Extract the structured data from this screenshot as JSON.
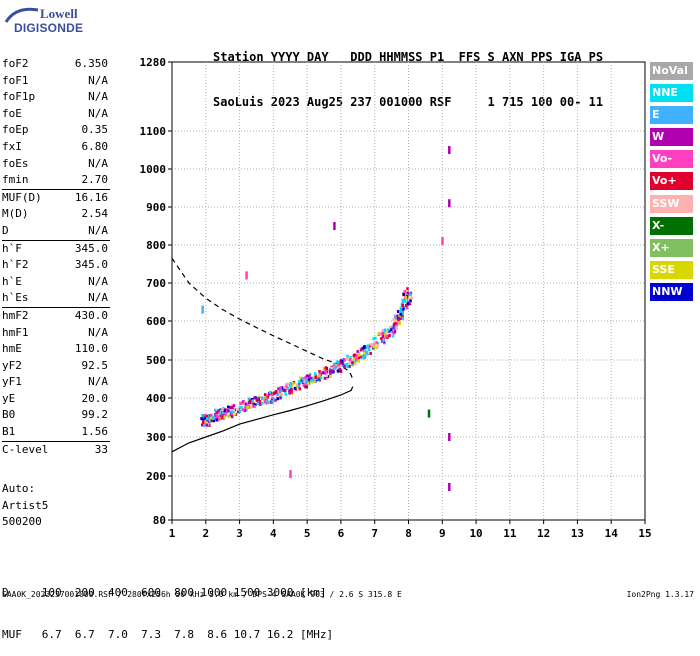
{
  "logo": {
    "line1": "Lowell",
    "line2": "DIGISONDE"
  },
  "header": {
    "line1": "Station YYYY DAY   DDD HHMMSS P1  FFS S AXN PPS IGA PS",
    "line2": "SaoLuis 2023 Aug25 237 001000 RSF     1 715 100 00- 11"
  },
  "params": [
    [
      [
        "foF2",
        "6.350"
      ],
      [
        "foF1",
        "N/A"
      ],
      [
        "foF1p",
        "N/A"
      ],
      [
        "foE",
        "N/A"
      ],
      [
        "foEp",
        "0.35"
      ],
      [
        "fxI",
        "6.80"
      ],
      [
        "foEs",
        "N/A"
      ],
      [
        "fmin",
        "2.70"
      ]
    ],
    [
      [
        "MUF(D)",
        "16.16"
      ],
      [
        "M(D)",
        "2.54"
      ],
      [
        "D",
        "N/A"
      ]
    ],
    [
      [
        "h`F",
        "345.0"
      ],
      [
        "h`F2",
        "345.0"
      ],
      [
        "h`E",
        "N/A"
      ],
      [
        "h`Es",
        "N/A"
      ]
    ],
    [
      [
        "hmF2",
        "430.0"
      ],
      [
        "hmF1",
        "N/A"
      ],
      [
        "hmE",
        "110.0"
      ],
      [
        "yF2",
        "92.5"
      ],
      [
        "yF1",
        "N/A"
      ],
      [
        "yE",
        "20.0"
      ],
      [
        "B0",
        "99.2"
      ],
      [
        "B1",
        "1.56"
      ]
    ],
    [
      [
        "C-level",
        "33"
      ]
    ]
  ],
  "auto": {
    "line1": "Auto:",
    "line2": "Artist5",
    "line3": "500200"
  },
  "legend": [
    {
      "label": "NoVal",
      "color": "#a8a8a8"
    },
    {
      "label": "NNE",
      "color": "#00e0f0"
    },
    {
      "label": "E",
      "color": "#40b0ff"
    },
    {
      "label": "W",
      "color": "#b000b0"
    },
    {
      "label": "Vo-",
      "color": "#ff40c0"
    },
    {
      "label": "Vo+",
      "color": "#e00030"
    },
    {
      "label": "SSW",
      "color": "#ffb0b0"
    },
    {
      "label": "X-",
      "color": "#007000"
    },
    {
      "label": "X+",
      "color": "#80c060"
    },
    {
      "label": "SSE",
      "color": "#d8d800"
    },
    {
      "label": "NNW",
      "color": "#0000d0"
    }
  ],
  "bottom": {
    "line1": "D     100  200  400  600  800 1000 1500 3000 [km]",
    "line2": "MUF   6.7  6.7  7.0  7.3  7.8  8.6 10.7 16.2 [MHz]"
  },
  "footer_left": "SAA0K_2023237001000.RSF / 280fx256h 50 kHz 5.0 km / DPS-4 SAA0K 903 / 2.6 S 315.8 E",
  "footer_right": "Ion2Png 1.3.17",
  "chart_data": {
    "type": "scatter",
    "xlim": [
      1,
      15
    ],
    "ylim": [
      80,
      1280
    ],
    "xticks": [
      1,
      2,
      3,
      4,
      5,
      6,
      7,
      8,
      9,
      10,
      11,
      12,
      13,
      14,
      15
    ],
    "yticks": [
      80,
      200,
      300,
      400,
      500,
      600,
      700,
      800,
      900,
      1000,
      1100,
      1280
    ],
    "grid": true,
    "y_scale": "nonlinear",
    "y_tick_pixels_note": "",
    "profile_solid": [
      [
        1.0,
        262
      ],
      [
        1.5,
        285
      ],
      [
        2.0,
        300
      ],
      [
        2.5,
        315
      ],
      [
        3.0,
        333
      ],
      [
        3.5,
        345
      ],
      [
        4.0,
        357
      ],
      [
        4.5,
        368
      ],
      [
        5.0,
        380
      ],
      [
        5.5,
        393
      ],
      [
        6.0,
        408
      ],
      [
        6.3,
        420
      ],
      [
        6.35,
        430
      ]
    ],
    "profile_dashed": [
      [
        1.0,
        765
      ],
      [
        1.5,
        700
      ],
      [
        2.0,
        660
      ],
      [
        2.5,
        630
      ],
      [
        3.0,
        605
      ],
      [
        3.5,
        583
      ],
      [
        4.0,
        562
      ],
      [
        4.5,
        542
      ],
      [
        5.0,
        522
      ],
      [
        5.5,
        502
      ],
      [
        5.9,
        490
      ],
      [
        6.25,
        470
      ],
      [
        6.35,
        450
      ]
    ],
    "trace": [
      [
        1.9,
        345
      ],
      [
        2.2,
        355
      ],
      [
        2.5,
        365
      ],
      [
        3.0,
        380
      ],
      [
        3.5,
        395
      ],
      [
        4.0,
        410
      ],
      [
        4.5,
        430
      ],
      [
        5.0,
        450
      ],
      [
        5.5,
        470
      ],
      [
        6.0,
        490
      ],
      [
        6.5,
        515
      ],
      [
        7.0,
        545
      ],
      [
        7.5,
        585
      ],
      [
        7.8,
        640
      ],
      [
        8.0,
        680
      ]
    ],
    "scatter_points": [
      {
        "x": 5.8,
        "y": 850,
        "color": "#b000b0"
      },
      {
        "x": 3.2,
        "y": 720,
        "color": "#ff40c0"
      },
      {
        "x": 1.9,
        "y": 630,
        "color": "#40b0ff"
      },
      {
        "x": 8.6,
        "y": 360,
        "color": "#007000"
      },
      {
        "x": 9.2,
        "y": 1050,
        "color": "#b000b0"
      },
      {
        "x": 9.2,
        "y": 910,
        "color": "#b000b0"
      },
      {
        "x": 9.2,
        "y": 300,
        "color": "#b000b0"
      },
      {
        "x": 9.2,
        "y": 170,
        "color": "#b000b0"
      },
      {
        "x": 9.0,
        "y": 810,
        "color": "#ff40c0"
      },
      {
        "x": 4.5,
        "y": 205,
        "color": "#ff40c0"
      }
    ]
  }
}
